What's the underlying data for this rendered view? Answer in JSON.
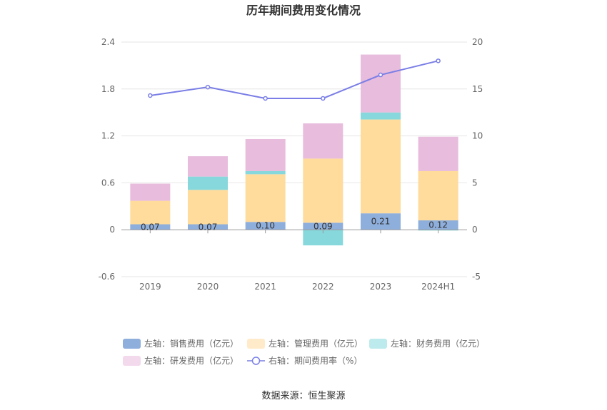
{
  "chart_data": {
    "type": "bar",
    "title": "历年期间费用变化情况",
    "categories": [
      "2019",
      "2020",
      "2021",
      "2022",
      "2023",
      "2024H1"
    ],
    "left_axis": {
      "ylim": [
        -0.6,
        2.4
      ],
      "ticks": [
        "2.4",
        "1.8",
        "1.2",
        "0.6",
        "0",
        "-0.6"
      ],
      "tick_values": [
        2.4,
        1.8,
        1.2,
        0.6,
        0,
        -0.6
      ]
    },
    "right_axis": {
      "ylim": [
        -5,
        20
      ],
      "ticks": [
        "20",
        "15",
        "10",
        "5",
        "0",
        "-5"
      ],
      "tick_values": [
        20,
        15,
        10,
        5,
        0,
        -5
      ]
    },
    "series": [
      {
        "name": "左轴：销售费用（亿元）",
        "axis": "left",
        "kind": "stacked-bar",
        "color": "#8eaedc",
        "values": [
          0.07,
          0.07,
          0.1,
          0.09,
          0.21,
          0.12
        ]
      },
      {
        "name": "左轴：管理费用（亿元）",
        "axis": "left",
        "kind": "stacked-bar",
        "color": "#ffdb9c",
        "values": [
          0.3,
          0.44,
          0.61,
          0.82,
          1.2,
          0.63
        ]
      },
      {
        "name": "左轴：财务费用（亿元）",
        "axis": "left",
        "kind": "stacked-bar",
        "color": "#86d8dc",
        "values": [
          0.0,
          0.17,
          0.04,
          -0.2,
          0.09,
          -0.01
        ]
      },
      {
        "name": "左轴：研发费用（亿元）",
        "axis": "left",
        "kind": "stacked-bar",
        "color": "#e8bcdc",
        "values": [
          0.22,
          0.26,
          0.41,
          0.45,
          0.74,
          0.44
        ]
      },
      {
        "name": "右轴：期间费用率（%）",
        "axis": "right",
        "kind": "line",
        "color": "#7a7ee6",
        "values": [
          14.3,
          15.2,
          14.0,
          14.0,
          16.5,
          18.0
        ]
      }
    ],
    "data_labels": [
      "0.07",
      "0.07",
      "0.10",
      "0.09",
      "0.21",
      "0.12"
    ],
    "legend_position": "bottom",
    "grid": true
  },
  "source_text": "数据来源：恒生聚源"
}
